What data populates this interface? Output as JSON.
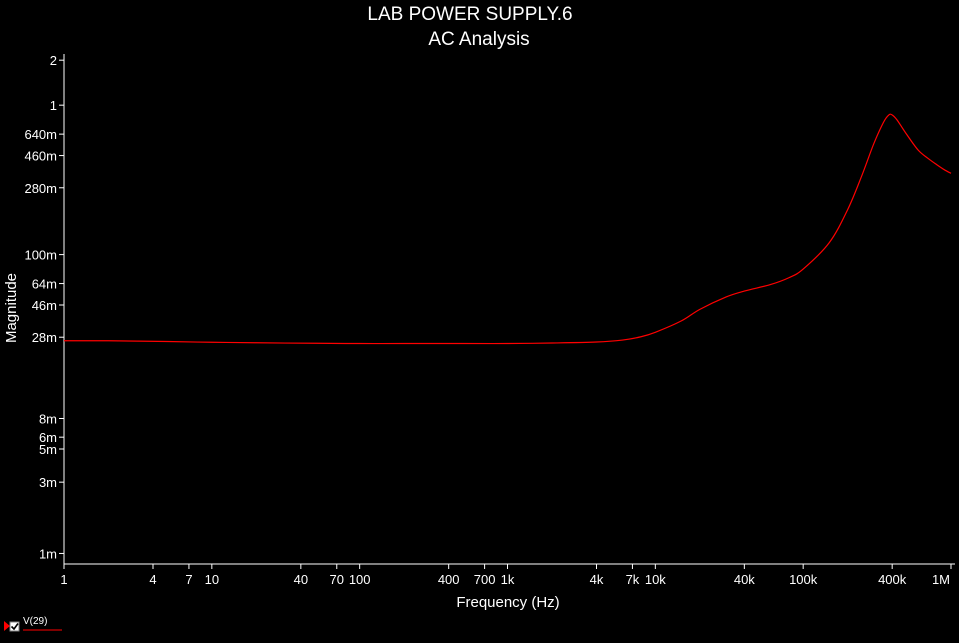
{
  "chart_data": {
    "type": "line",
    "title": "LAB POWER SUPPLY.6",
    "subtitle": "AC Analysis",
    "xlabel": "Frequency (Hz)",
    "ylabel": "Magnitude",
    "xscale": "log",
    "yscale": "log",
    "xlim": [
      1,
      1000000
    ],
    "ylim": [
      0.00085,
      2.2
    ],
    "grid": false,
    "legend_position": "bottom-left",
    "background_color": "#000000",
    "axis_color": "#ffffff",
    "x_ticks": [
      {
        "value": 1,
        "label": "1"
      },
      {
        "value": 4,
        "label": "4"
      },
      {
        "value": 7,
        "label": "7"
      },
      {
        "value": 10,
        "label": "10"
      },
      {
        "value": 40,
        "label": "40"
      },
      {
        "value": 70,
        "label": "70"
      },
      {
        "value": 100,
        "label": "100"
      },
      {
        "value": 400,
        "label": "400"
      },
      {
        "value": 700,
        "label": "700"
      },
      {
        "value": 1000,
        "label": "1k"
      },
      {
        "value": 4000,
        "label": "4k"
      },
      {
        "value": 7000,
        "label": "7k"
      },
      {
        "value": 10000,
        "label": "10k"
      },
      {
        "value": 40000,
        "label": "40k"
      },
      {
        "value": 100000,
        "label": "100k"
      },
      {
        "value": 400000,
        "label": "400k"
      },
      {
        "value": 1000000,
        "label": "1M"
      }
    ],
    "y_ticks": [
      {
        "value": 2,
        "label": "2"
      },
      {
        "value": 1,
        "label": "1"
      },
      {
        "value": 0.64,
        "label": "640m"
      },
      {
        "value": 0.46,
        "label": "460m"
      },
      {
        "value": 0.28,
        "label": "280m"
      },
      {
        "value": 0.1,
        "label": "100m"
      },
      {
        "value": 0.064,
        "label": "64m"
      },
      {
        "value": 0.046,
        "label": "46m"
      },
      {
        "value": 0.028,
        "label": "28m"
      },
      {
        "value": 0.008,
        "label": "8m"
      },
      {
        "value": 0.006,
        "label": "6m"
      },
      {
        "value": 0.005,
        "label": "5m"
      },
      {
        "value": 0.003,
        "label": "3m"
      },
      {
        "value": 0.001,
        "label": "1m"
      }
    ],
    "series": [
      {
        "name": "V(29)",
        "color": "#ff0000",
        "x": [
          1,
          2,
          5,
          10,
          20,
          50,
          100,
          200,
          500,
          1000,
          2000,
          4000,
          6000,
          8000,
          10000,
          15000,
          20000,
          30000,
          40000,
          60000,
          80000,
          100000,
          150000,
          200000,
          250000,
          300000,
          350000,
          380000,
          400000,
          430000,
          500000,
          600000,
          700000,
          800000,
          900000,
          1000000
        ],
        "y": [
          0.0265,
          0.0265,
          0.0262,
          0.0259,
          0.0257,
          0.0255,
          0.0254,
          0.0254,
          0.0254,
          0.0254,
          0.0256,
          0.026,
          0.0268,
          0.0282,
          0.0302,
          0.036,
          0.043,
          0.052,
          0.057,
          0.063,
          0.07,
          0.08,
          0.12,
          0.2,
          0.34,
          0.55,
          0.77,
          0.86,
          0.86,
          0.8,
          0.64,
          0.5,
          0.44,
          0.4,
          0.37,
          0.35
        ]
      }
    ]
  }
}
